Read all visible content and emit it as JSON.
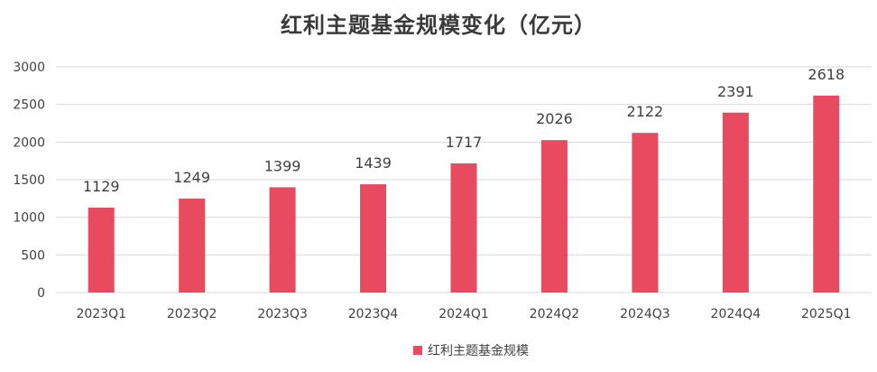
{
  "chart_data": {
    "type": "bar",
    "title": "红利主题基金规模变化（亿元）",
    "categories": [
      "2023Q1",
      "2023Q2",
      "2023Q3",
      "2023Q4",
      "2024Q1",
      "2024Q2",
      "2024Q3",
      "2024Q4",
      "2025Q1"
    ],
    "series": [
      {
        "name": "红利主题基金规模",
        "values": [
          1129,
          1249,
          1399,
          1439,
          1717,
          2026,
          2122,
          2391,
          2618
        ],
        "color": "#e84a5f"
      }
    ],
    "yticks": [
      0,
      500,
      1000,
      1500,
      2000,
      2500,
      3000
    ],
    "ylim": [
      0,
      3000
    ],
    "xlabel": "",
    "ylabel": "",
    "grid": true,
    "grid_color": "#d9d9d9",
    "legend_position": "bottom",
    "data_labels": true
  }
}
